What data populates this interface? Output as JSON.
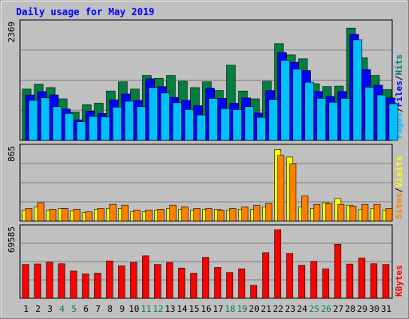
{
  "chart_data": {
    "type": "bar",
    "title": "Daily usage for May 2019",
    "days": [
      "1",
      "2",
      "3",
      "4",
      "5",
      "6",
      "7",
      "8",
      "9",
      "10",
      "11",
      "12",
      "13",
      "14",
      "15",
      "16",
      "17",
      "18",
      "19",
      "20",
      "21",
      "22",
      "23",
      "24",
      "25",
      "26",
      "27",
      "28",
      "29",
      "30",
      "31"
    ],
    "weekend_days": [
      4,
      5,
      11,
      12,
      18,
      19,
      25,
      26
    ],
    "panels": [
      {
        "id": "hits-files-pages",
        "ymax_label": "2369",
        "ymax": 2369,
        "side_label": [
          "Pages",
          "/",
          "Files",
          "/",
          "Hits"
        ],
        "side_label_colors": [
          "#00c0ff",
          "#000000",
          "#0000ff",
          "#000000",
          "#008080"
        ],
        "series": [
          {
            "key": "hits",
            "color": "#008040",
            "values": [
              1050,
              1150,
              1080,
              850,
              580,
              730,
              760,
              1010,
              1200,
              1050,
              1330,
              1270,
              1330,
              1210,
              1080,
              1200,
              1020,
              1540,
              1010,
              850,
              1210,
              1980,
              1750,
              1670,
              1160,
              1100,
              1110,
              2300,
              1690,
              1330,
              1040
            ]
          },
          {
            "key": "files",
            "color": "#0000ff",
            "values": [
              930,
              1000,
              930,
              640,
              420,
              600,
              550,
              830,
              950,
              820,
              1260,
              1100,
              880,
              820,
              710,
              1070,
              860,
              760,
              870,
              560,
              1020,
              1800,
              1600,
              1430,
              1000,
              900,
              1000,
              2170,
              1450,
              1130,
              870
            ]
          },
          {
            "key": "pages",
            "color": "#00c0ff",
            "values": [
              820,
              870,
              690,
              550,
              380,
              490,
              480,
              680,
              800,
              690,
              1080,
              970,
              770,
              630,
              520,
              860,
              650,
              630,
              690,
              470,
              840,
              1640,
              1460,
              1190,
              860,
              780,
              860,
              2060,
              1090,
              930,
              750
            ]
          }
        ]
      },
      {
        "id": "visits-sites",
        "ymax_label": "865",
        "ymax": 865,
        "side_label": [
          "Sites",
          "/",
          "Visits"
        ],
        "side_label_colors": [
          "#ff8000",
          "#000000",
          "#ffff00"
        ],
        "series": [
          {
            "key": "visits",
            "color": "#ffff00",
            "values": [
              130,
              170,
              130,
              150,
              120,
              100,
              140,
              150,
              150,
              110,
              110,
              130,
              150,
              140,
              130,
              140,
              140,
              130,
              140,
              140,
              170,
              860,
              770,
              170,
              150,
              220,
              270,
              190,
              140,
              150,
              130
            ]
          },
          {
            "key": "sites",
            "color": "#ff8000",
            "values": [
              150,
              220,
              140,
              150,
              140,
              110,
              150,
              200,
              190,
              130,
              130,
              140,
              190,
              170,
              150,
              150,
              130,
              150,
              170,
              190,
              210,
              790,
              690,
              300,
              200,
              210,
              200,
              180,
              200,
              200,
              150
            ]
          }
        ]
      },
      {
        "id": "kbytes",
        "ymax_label": "69585",
        "ymax": 69585,
        "side_label": [
          "KBytes"
        ],
        "side_label_colors": [
          "#ff0000"
        ],
        "series": [
          {
            "key": "kbytes",
            "color": "#ff0000",
            "values": [
              34200,
              34800,
              36500,
              35000,
              27600,
              24700,
              25400,
              37900,
              33000,
              36300,
              43000,
              34200,
              36300,
              30600,
              25400,
              41500,
              31200,
              26100,
              29900,
              13100,
              46200,
              69585,
              45500,
              33500,
              37400,
              29900,
              54800,
              34700,
              40700,
              35000,
              34200
            ]
          }
        ]
      }
    ]
  }
}
